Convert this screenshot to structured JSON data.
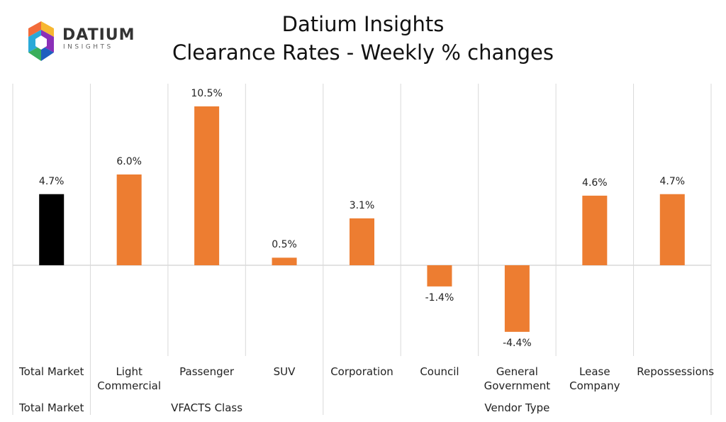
{
  "logo": {
    "name": "DATIUM",
    "tagline": "INSIGHTS"
  },
  "chart_data": {
    "type": "bar",
    "title": "Datium Insights",
    "subtitle": "Clearance Rates - Weekly % changes",
    "categories": [
      "Total Market",
      "Light Commercial",
      "Passenger",
      "SUV",
      "Corporation",
      "Council",
      "General Government",
      "Lease Company",
      "Repossessions"
    ],
    "values": [
      4.7,
      6.0,
      10.5,
      0.5,
      3.1,
      -1.4,
      -4.4,
      4.6,
      4.7
    ],
    "value_labels": [
      "4.7%",
      "6.0%",
      "10.5%",
      "0.5%",
      "3.1%",
      "-1.4%",
      "-4.4%",
      "4.6%",
      "4.7%"
    ],
    "colors": [
      "#000000",
      "#ed7d31",
      "#ed7d31",
      "#ed7d31",
      "#ed7d31",
      "#ed7d31",
      "#ed7d31",
      "#ed7d31",
      "#ed7d31"
    ],
    "groups": [
      {
        "label": "Total Market",
        "size": 1
      },
      {
        "label": "VFACTS Class",
        "size": 3
      },
      {
        "label": "Vendor Type",
        "size": 5
      }
    ],
    "ylim": [
      -6,
      12
    ]
  }
}
